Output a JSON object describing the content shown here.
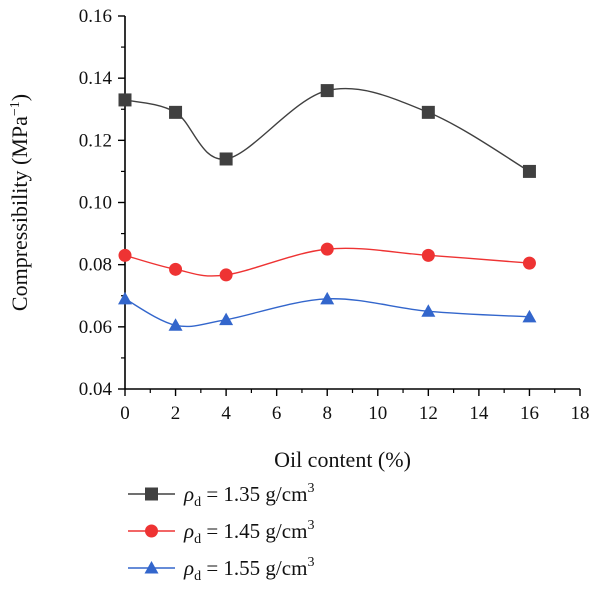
{
  "chart_data": {
    "type": "line",
    "title": "",
    "xlabel": "Oil content (%)",
    "ylabel": "Compressibility (MPa",
    "ylabel_sup": "−1",
    "ylabel_close": ")",
    "xlim": [
      0,
      18
    ],
    "ylim": [
      0.04,
      0.16
    ],
    "xticks": [
      0,
      2,
      4,
      6,
      8,
      10,
      12,
      14,
      16,
      18
    ],
    "yticks": [
      0.04,
      0.06,
      0.08,
      0.1,
      0.12,
      0.14,
      0.16
    ],
    "xtick_labels": [
      "0",
      "2",
      "4",
      "6",
      "8",
      "10",
      "12",
      "14",
      "16",
      "18"
    ],
    "ytick_labels": [
      "0.04",
      "0.06",
      "0.08",
      "0.10",
      "0.12",
      "0.14",
      "0.16"
    ],
    "x": [
      0,
      2,
      4,
      8,
      12,
      16
    ],
    "grid": false,
    "legend_position": "bottom",
    "series": [
      {
        "name_symbol": "ρ",
        "name_sub": "d",
        "name_eq": " = 1.35 g/cm",
        "name_sup": "3",
        "marker": "square",
        "color": "#404040",
        "values": [
          0.133,
          0.129,
          0.114,
          0.136,
          0.129,
          0.11
        ]
      },
      {
        "name_symbol": "ρ",
        "name_sub": "d",
        "name_eq": " = 1.45 g/cm",
        "name_sup": "3",
        "marker": "circle",
        "color": "#ee3333",
        "values": [
          0.083,
          0.0785,
          0.0767,
          0.085,
          0.083,
          0.0805
        ]
      },
      {
        "name_symbol": "ρ",
        "name_sub": "d",
        "name_eq": " = 1.55 g/cm",
        "name_sup": "3",
        "marker": "triangle",
        "color": "#3366cc",
        "values": [
          0.069,
          0.0605,
          0.0623,
          0.069,
          0.065,
          0.0632
        ]
      }
    ]
  }
}
